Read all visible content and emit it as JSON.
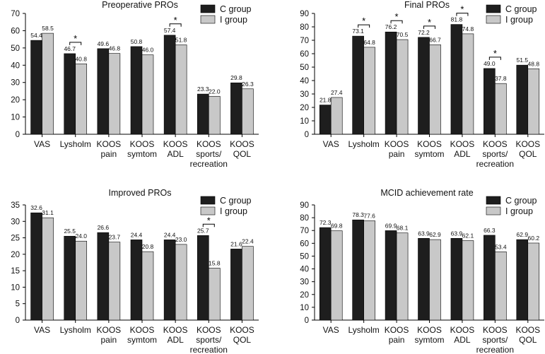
{
  "chart_data": [
    {
      "type": "bar",
      "title": "Preoperative PROs",
      "categories": [
        "VAS",
        "Lysholm",
        "KOOS\npain",
        "KOOS\nsymtom",
        "KOOS\nADL",
        "KOOS\nsports/\nrecreation",
        "KOOS\nQOL"
      ],
      "series": [
        {
          "name": "C group",
          "color": "#1e1e1e",
          "values": [
            54.4,
            46.7,
            49.6,
            50.8,
            57.4,
            23.3,
            29.8
          ]
        },
        {
          "name": "I group",
          "color": "#c8c8c8",
          "values": [
            58.5,
            40.8,
            46.8,
            46.0,
            51.8,
            22.0,
            26.3
          ]
        }
      ],
      "ylim": [
        0,
        70
      ],
      "yticks": [
        0,
        10,
        20,
        30,
        40,
        50,
        60,
        70
      ],
      "legend": "top-right",
      "significance": [
        1,
        4
      ],
      "sig_marker": "*"
    },
    {
      "type": "bar",
      "title": "Final PROs",
      "categories": [
        "VAS",
        "Lysholm",
        "KOOS\npain",
        "KOOS\nsymtom",
        "KOOS\nADL",
        "KOOS\nsports/\nrecreation",
        "KOOS\nQOL"
      ],
      "series": [
        {
          "name": "C group",
          "color": "#1e1e1e",
          "values": [
            21.8,
            73.1,
            76.2,
            72.2,
            81.8,
            49.0,
            51.5
          ]
        },
        {
          "name": "I group",
          "color": "#c8c8c8",
          "values": [
            27.4,
            64.8,
            70.5,
            66.7,
            74.8,
            37.8,
            48.8
          ]
        }
      ],
      "ylim": [
        0,
        90
      ],
      "yticks": [
        0,
        10,
        20,
        30,
        40,
        50,
        60,
        70,
        80,
        90
      ],
      "legend": "top-right",
      "significance": [
        1,
        2,
        3,
        4,
        5
      ],
      "sig_marker": "*"
    },
    {
      "type": "bar",
      "title": "Improved PROs",
      "categories": [
        "VAS",
        "Lysholm",
        "KOOS\npain",
        "KOOS\nsymtom",
        "KOOS\nADL",
        "KOOS\nsports/\nrecreation",
        "KOOS\nQOL"
      ],
      "series": [
        {
          "name": "C group",
          "color": "#1e1e1e",
          "values": [
            32.6,
            25.5,
            26.6,
            24.4,
            24.4,
            25.7,
            21.6
          ]
        },
        {
          "name": "I group",
          "color": "#c8c8c8",
          "values": [
            31.1,
            24.0,
            23.7,
            20.8,
            23.0,
            15.8,
            22.4
          ]
        }
      ],
      "ylim": [
        0,
        35
      ],
      "yticks": [
        0,
        5,
        10,
        15,
        20,
        25,
        30,
        35
      ],
      "legend": "top-right",
      "significance": [
        5
      ],
      "sig_marker": "*"
    },
    {
      "type": "bar",
      "title": "MCID achievement rate",
      "categories": [
        "VAS",
        "Lysholm",
        "KOOS\npain",
        "KOOS\nsymtom",
        "KOOS\nADL",
        "KOOS\nsports/\nrecreation",
        "KOOS\nQOL"
      ],
      "series": [
        {
          "name": "C group",
          "color": "#1e1e1e",
          "values": [
            72.3,
            78.3,
            69.9,
            63.9,
            63.9,
            66.3,
            62.9
          ]
        },
        {
          "name": "I group",
          "color": "#c8c8c8",
          "values": [
            69.8,
            77.6,
            68.1,
            62.9,
            62.1,
            53.4,
            60.2
          ]
        }
      ],
      "ylim": [
        0,
        90
      ],
      "yticks": [
        0,
        10,
        20,
        30,
        40,
        50,
        60,
        70,
        80,
        90
      ],
      "legend": "top-right",
      "significance": [],
      "sig_marker": "*"
    }
  ]
}
